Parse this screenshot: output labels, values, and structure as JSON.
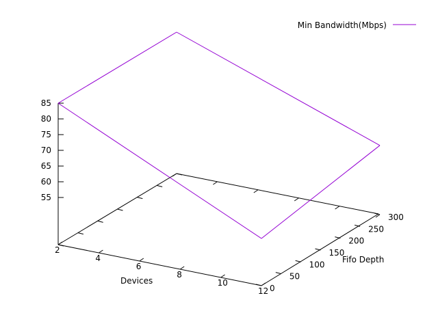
{
  "chart_data": {
    "type": "surface3d",
    "title": "",
    "xlabel": "Devices",
    "ylabel": "Fifo Depth",
    "zlabel": "",
    "x_ticks": [
      "2",
      "4",
      "6",
      "8",
      "10",
      "12"
    ],
    "y_ticks": [
      "0",
      "50",
      "100",
      "150",
      "200",
      "250",
      "300"
    ],
    "z_ticks": [
      "55",
      "60",
      "65",
      "70",
      "75",
      "80",
      "85"
    ],
    "xlim": [
      2,
      12
    ],
    "ylim": [
      0,
      300
    ],
    "zlim": [
      55,
      85
    ],
    "legend_position": "top-right",
    "series": [
      {
        "name": "Min Bandwidth(Mbps)",
        "color": "#9400d3",
        "points": [
          {
            "x": 2,
            "y": 0,
            "z": 85
          },
          {
            "x": 2,
            "y": 300,
            "z": 85
          },
          {
            "x": 12,
            "y": 300,
            "z": 62
          },
          {
            "x": 12,
            "y": 0,
            "z": 55
          }
        ]
      }
    ]
  }
}
